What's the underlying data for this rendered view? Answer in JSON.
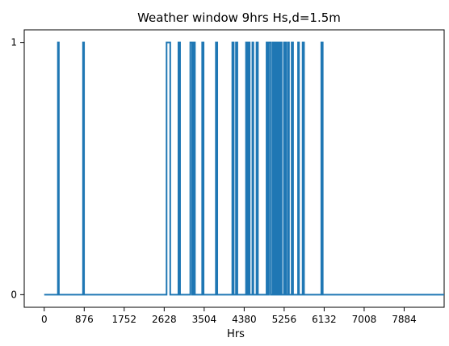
{
  "chart_data": {
    "type": "line",
    "title": "Weather window 9hrs Hs,d=1.5m",
    "xlabel": "Hrs",
    "ylabel": "",
    "xlim": [
      -438,
      8760
    ],
    "ylim": [
      -0.05,
      1.05
    ],
    "xticks": [
      0,
      876,
      1752,
      2628,
      3504,
      4380,
      5256,
      6132,
      7008,
      7884
    ],
    "yticks": [
      0,
      1
    ],
    "grid": false,
    "legend": "none",
    "color": "#1f77b4",
    "windows": [
      [
        300,
        320
      ],
      [
        850,
        872
      ],
      [
        2680,
        2760
      ],
      [
        2940,
        2975
      ],
      [
        3200,
        3240
      ],
      [
        3275,
        3300
      ],
      [
        3460,
        3490
      ],
      [
        3760,
        3790
      ],
      [
        4120,
        4150
      ],
      [
        4200,
        4230
      ],
      [
        4420,
        4450
      ],
      [
        4475,
        4500
      ],
      [
        4560,
        4580
      ],
      [
        4650,
        4680
      ],
      [
        4870,
        4890
      ],
      [
        4920,
        4960
      ],
      [
        5000,
        5030
      ],
      [
        5060,
        5090
      ],
      [
        5110,
        5140
      ],
      [
        5175,
        5200
      ],
      [
        5250,
        5270
      ],
      [
        5285,
        5300
      ],
      [
        5340,
        5360
      ],
      [
        5420,
        5450
      ],
      [
        5560,
        5580
      ],
      [
        5660,
        5690
      ],
      [
        6070,
        6100
      ]
    ]
  }
}
